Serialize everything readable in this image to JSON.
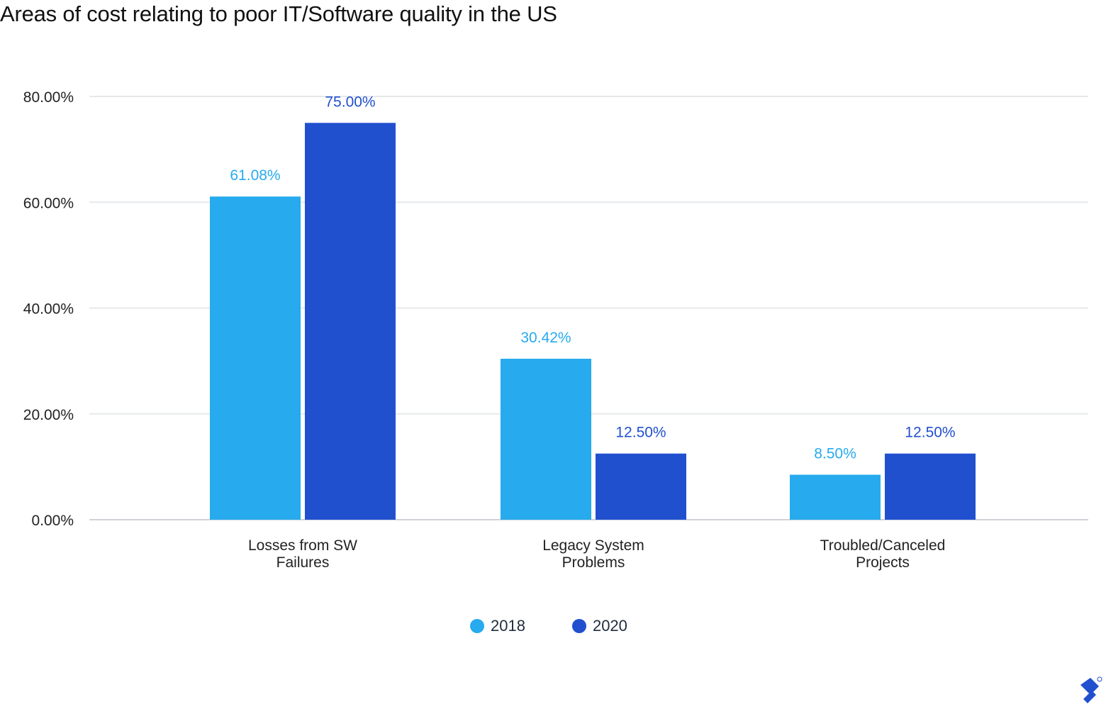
{
  "chart_data": {
    "type": "bar",
    "title": "Areas of cost relating to poor IT/Software quality in the US",
    "categories": [
      [
        "Losses from SW",
        "Failures"
      ],
      [
        "Legacy System",
        "Problems"
      ],
      [
        "Troubled/Canceled",
        "Projects"
      ]
    ],
    "series": [
      {
        "name": "2018",
        "color": "#27aaee",
        "values": [
          61.08,
          30.42,
          8.5
        ],
        "labels": [
          "61.08%",
          "30.42%",
          "8.50%"
        ]
      },
      {
        "name": "2020",
        "color": "#2150cf",
        "values": [
          75.0,
          12.5,
          12.5
        ],
        "labels": [
          "75.00%",
          "12.50%",
          "12.50%"
        ]
      }
    ],
    "y_ticks": [
      "0.00%",
      "20.00%",
      "40.00%",
      "60.00%",
      "80.00%"
    ],
    "ylim": [
      0,
      80
    ],
    "grid": true,
    "legend_position": "bottom",
    "xlabel": "",
    "ylabel": ""
  },
  "logo_icon": "toptal-logo-icon"
}
